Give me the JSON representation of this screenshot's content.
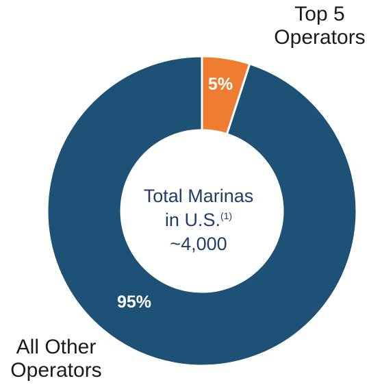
{
  "chart_data": {
    "type": "pie",
    "donut": true,
    "slices": [
      {
        "label": "Top 5 Operators",
        "value": 5,
        "value_label": "5%",
        "color": "#ee7d31"
      },
      {
        "label": "All Other Operators",
        "value": 95,
        "value_label": "95%",
        "color": "#1d5176"
      }
    ],
    "center_text": {
      "line1": "Total Marinas",
      "line2": "in U.S.",
      "footnote": "(1)",
      "line3": "~4,000"
    },
    "labels": {
      "top_line1": "Top 5",
      "top_line2": "Operators",
      "bottom_line1": "All Other",
      "bottom_line2": "Operators"
    }
  },
  "colors": {
    "text_dark": "#1a1a1a",
    "center_text": "#1f3d6b",
    "slice_label": "#ffffff"
  }
}
